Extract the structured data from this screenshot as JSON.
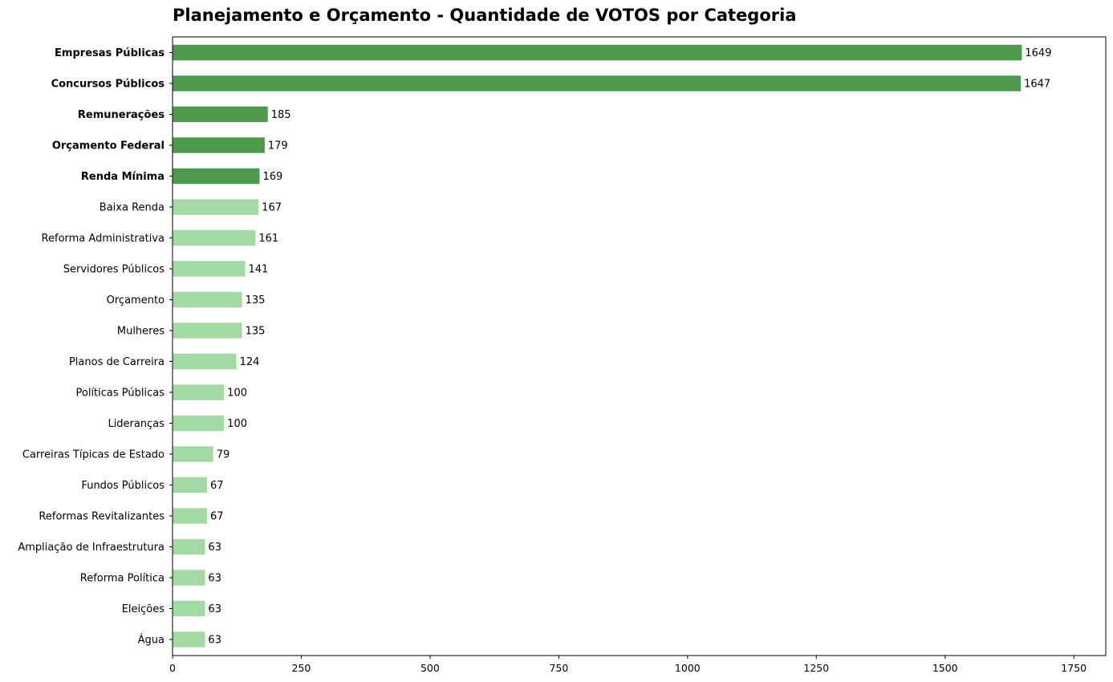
{
  "chart_data": {
    "type": "bar",
    "orientation": "horizontal",
    "title": "Planejamento e Orçamento - Quantidade de VOTOS por Categoria",
    "xlabel": "",
    "ylabel": "",
    "xlim": [
      0,
      1812
    ],
    "xticks": [
      "0",
      "250",
      "500",
      "750",
      "1000",
      "1250",
      "1500",
      "1750"
    ],
    "grid": false,
    "categories": [
      "Empresas Públicas",
      "Concursos Públicos",
      "Remunerações",
      "Orçamento Federal",
      "Renda Mínima",
      "Baixa Renda",
      "Reforma Administrativa",
      "Servidores Públicos",
      "Orçamento",
      "Mulheres",
      "Planos de Carreira",
      "Políticas Públicas",
      "Lideranças",
      "Carreiras Típicas de Estado",
      "Fundos Públicos",
      "Reformas Revitalizantes",
      "Ampliação de Infraestrutura",
      "Reforma Política",
      "Eleições",
      "Água"
    ],
    "values": [
      1649,
      1647,
      185,
      179,
      169,
      167,
      161,
      141,
      135,
      135,
      124,
      100,
      100,
      79,
      67,
      67,
      63,
      63,
      63,
      63
    ],
    "highlight_count": 5,
    "colors": {
      "highlight": "#4f994f",
      "normal": "#a3d9a3"
    }
  }
}
